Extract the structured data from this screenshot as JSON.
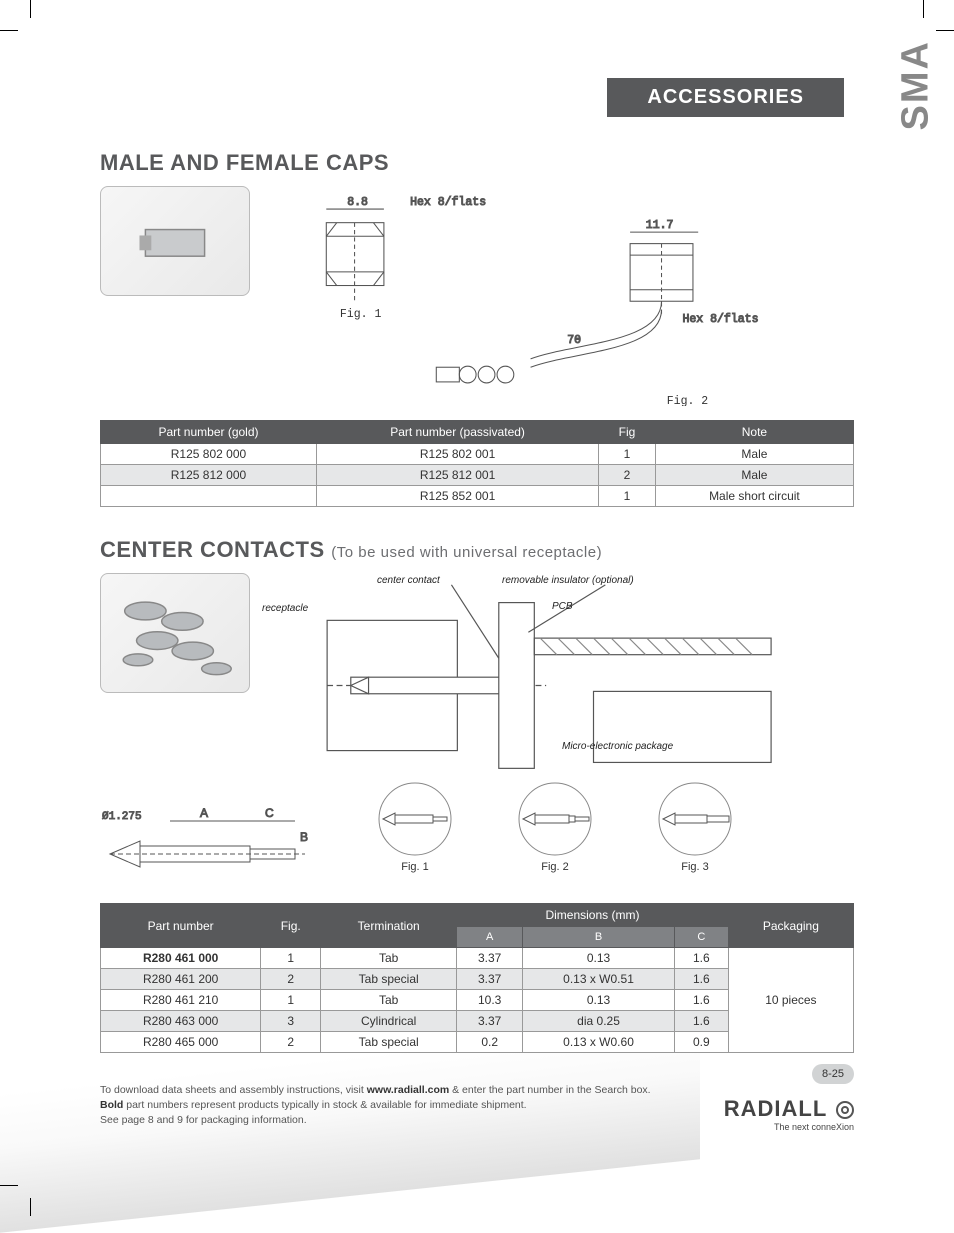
{
  "header": {
    "category": "ACCESSORIES",
    "side_label": "SMA"
  },
  "section1": {
    "title": "MALE AND FEMALE CAPS",
    "fig1": {
      "caption": "Fig. 1",
      "dim_w": "8.8",
      "hex_label": "Hex 8/flats"
    },
    "fig2": {
      "caption": "Fig. 2",
      "dim_w": "11.7",
      "dim_len": "70",
      "hex_label": "Hex 8/flats"
    },
    "table": {
      "columns": [
        "Part number (gold)",
        "Part number (passivated)",
        "Fig",
        "Note"
      ],
      "rows": [
        {
          "cells": [
            "R125 802 000",
            "R125 802 001",
            "1",
            "Male"
          ],
          "shade": false
        },
        {
          "cells": [
            "R125 812 000",
            "R125 812 001",
            "2",
            "Male"
          ],
          "shade": true
        },
        {
          "cells": [
            "",
            "R125 852 001",
            "1",
            "Male short circuit"
          ],
          "shade": false
        }
      ]
    }
  },
  "section2": {
    "title": "CENTER CONTACTS",
    "subtitle": "(To be used with universal receptacle)",
    "diagram_labels": {
      "center_contact": "center contact",
      "removable_insulator": "removable insulator (optional)",
      "receptacle": "receptacle",
      "pcb": "PCB",
      "mep": "Micro-electronic package"
    },
    "dim_schematic": {
      "diameter": "Ø1.275",
      "A": "A",
      "B": "B",
      "C": "C"
    },
    "pin_figs": [
      {
        "caption": "Fig. 1"
      },
      {
        "caption": "Fig. 2"
      },
      {
        "caption": "Fig. 3"
      }
    ],
    "table": {
      "columns": [
        "Part number",
        "Fig.",
        "Termination",
        "Dimensions (mm)",
        "Packaging"
      ],
      "subcolumns": [
        "A",
        "B",
        "C"
      ],
      "rows": [
        {
          "pn": "R280 461 000",
          "bold": true,
          "fig": "1",
          "term": "Tab",
          "A": "3.37",
          "B": "0.13",
          "C": "1.6"
        },
        {
          "pn": "R280 461 200",
          "bold": false,
          "fig": "2",
          "term": "Tab special",
          "A": "3.37",
          "B": "0.13 x W0.51",
          "C": "1.6",
          "shade": true
        },
        {
          "pn": "R280 461 210",
          "bold": false,
          "fig": "1",
          "term": "Tab",
          "A": "10.3",
          "B": "0.13",
          "C": "1.6"
        },
        {
          "pn": "R280 463 000",
          "bold": false,
          "fig": "3",
          "term": "Cylindrical",
          "A": "3.37",
          "B": "dia 0.25",
          "C": "1.6",
          "shade": true
        },
        {
          "pn": "R280 465 000",
          "bold": false,
          "fig": "2",
          "term": "Tab special",
          "A": "0.2",
          "B": "0.13 x W0.60",
          "C": "0.9"
        }
      ],
      "packaging": "10 pieces"
    }
  },
  "footer": {
    "line1_a": "To download data sheets and assembly instructions, visit ",
    "line1_b": "www.radiall.com",
    "line1_c": " & enter the part number in the Search box.",
    "line2_a": "Bold",
    "line2_b": " part numbers represent products typically in stock & available for immediate shipment.",
    "line3": "See page 8 and 9 for packaging information.",
    "page_number": "8-25",
    "brand": "RADIALL",
    "tagline": "The next conneXion"
  }
}
